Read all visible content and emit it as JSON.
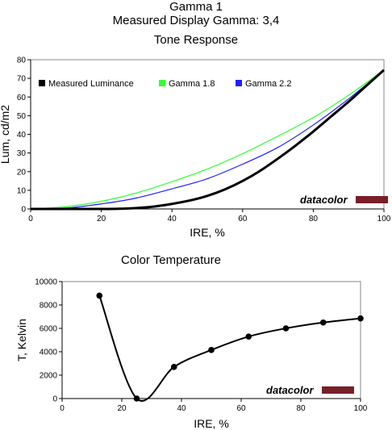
{
  "report": {
    "title": "Gamma 1",
    "subtitle": "Measured Display Gamma: 3,4"
  },
  "colors": {
    "measured": "#000000",
    "gamma18": "#33ff33",
    "gamma22": "#1f1fff",
    "brand_bar": "#7a1e28",
    "axis": "#000000",
    "plot_border": "#888888"
  },
  "chart_data": [
    {
      "type": "line",
      "title": "Tone Response",
      "xlabel": "IRE, %",
      "ylabel": "Lum, cd/m2",
      "xlim": [
        0,
        100
      ],
      "ylim": [
        0,
        80
      ],
      "xticks": [
        0,
        20,
        40,
        60,
        80,
        100
      ],
      "yticks": [
        0,
        10,
        20,
        30,
        40,
        50,
        60,
        70,
        80
      ],
      "grid": false,
      "legend_position": "top",
      "watermark": "datacolor",
      "series": [
        {
          "name": "Measured Luminance",
          "color": "#000000",
          "x": [
            0,
            10,
            20,
            25,
            30,
            35,
            40,
            45,
            50,
            55,
            60,
            65,
            70,
            75,
            80,
            85,
            90,
            95,
            100
          ],
          "values": [
            0,
            0,
            0,
            0.1,
            0.5,
            1.3,
            2.7,
            4.5,
            7.0,
            10.5,
            15.0,
            20.5,
            27.0,
            34.0,
            41.5,
            49.5,
            57.5,
            66.0,
            74.5
          ]
        },
        {
          "name": "Gamma 1.8",
          "color": "#33ff33",
          "x": [
            0,
            10,
            20,
            30,
            40,
            50,
            60,
            70,
            80,
            90,
            100
          ],
          "values": [
            0,
            1.2,
            4.1,
            8.6,
            14.6,
            21.4,
            29.6,
            39.0,
            49.0,
            60.9,
            74.5
          ]
        },
        {
          "name": "Gamma 2.2",
          "color": "#1f1fff",
          "x": [
            0,
            10,
            20,
            30,
            40,
            50,
            60,
            70,
            80,
            90,
            100
          ],
          "values": [
            0,
            0.5,
            2.7,
            5.9,
            10.8,
            16.2,
            24.0,
            33.0,
            45.0,
            59.0,
            74.5
          ]
        }
      ]
    },
    {
      "type": "line",
      "title": "Color Temperature",
      "xlabel": "IRE, %",
      "ylabel": "T, Kelvin",
      "xlim": [
        0,
        100
      ],
      "ylim": [
        0,
        10000
      ],
      "xticks": [
        0,
        20,
        40,
        60,
        80,
        100
      ],
      "yticks": [
        0,
        2000,
        4000,
        6000,
        8000,
        10000
      ],
      "grid": false,
      "watermark": "datacolor",
      "series": [
        {
          "color": "#000000",
          "x": [
            12.5,
            25,
            37.5,
            50,
            62.5,
            75,
            87.5,
            100
          ],
          "values": [
            8800,
            0,
            2700,
            4150,
            5300,
            6000,
            6500,
            6850
          ],
          "markers": true
        }
      ]
    }
  ]
}
